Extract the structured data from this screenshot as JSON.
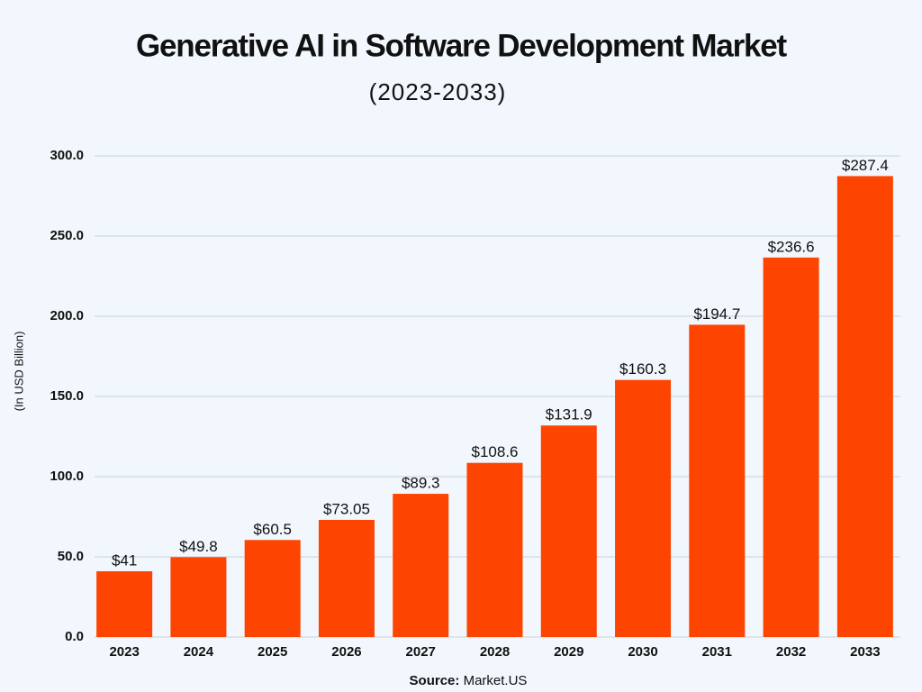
{
  "chart_data": {
    "type": "bar",
    "title": "Generative AI in Software Development Market",
    "subtitle": "(2023-2033)",
    "y_axis_label": "(In USD Billion)",
    "source": {
      "label": "Source:",
      "text": "Market.US"
    },
    "categories": [
      "2023",
      "2024",
      "2025",
      "2026",
      "2027",
      "2028",
      "2029",
      "2030",
      "2031",
      "2032",
      "2033"
    ],
    "values": [
      41,
      49.8,
      60.5,
      73.05,
      89.3,
      108.6,
      131.9,
      160.3,
      194.7,
      236.6,
      287.4
    ],
    "value_labels": [
      "$41",
      "$49.8",
      "$60.5",
      "$73.05",
      "$89.3",
      "$108.6",
      "$131.9",
      "$160.3",
      "$194.7",
      "$236.6",
      "$287.4"
    ],
    "color": "#fe4401",
    "ylim": [
      0,
      300
    ],
    "yticks": [
      {
        "value": 0,
        "label": "0.0"
      },
      {
        "value": 50,
        "label": "50.0"
      },
      {
        "value": 100,
        "label": "100.0"
      },
      {
        "value": 150,
        "label": "150.0"
      },
      {
        "value": 200,
        "label": "200.0"
      },
      {
        "value": 250,
        "label": "250.0"
      },
      {
        "value": 300,
        "label": "300.0"
      }
    ],
    "grid": true
  }
}
